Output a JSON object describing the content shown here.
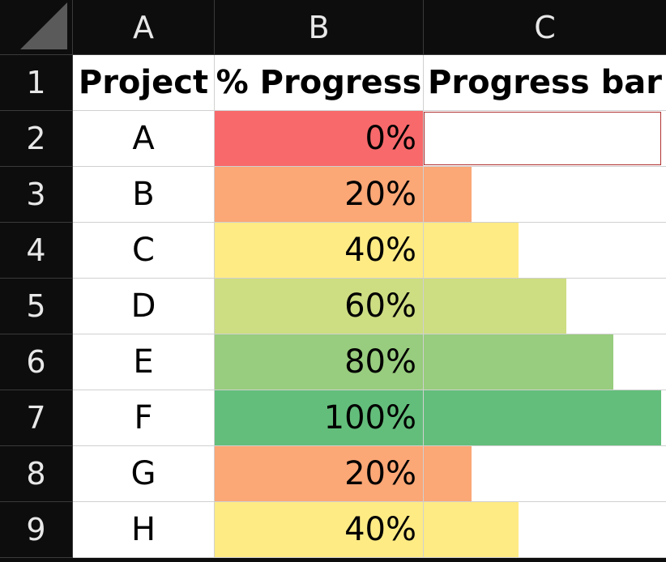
{
  "columns": [
    "A",
    "B",
    "C"
  ],
  "row_numbers": [
    "1",
    "2",
    "3",
    "4",
    "5",
    "6",
    "7",
    "8",
    "9"
  ],
  "headers": {
    "project": "Project",
    "progress": "% Progress",
    "bar": "Progress bar"
  },
  "rows": [
    {
      "project": "A",
      "progress": "0%",
      "fraction": 0.0,
      "color": "#f8696b"
    },
    {
      "project": "B",
      "progress": "20%",
      "fraction": 0.2,
      "color": "#fba776"
    },
    {
      "project": "C",
      "progress": "40%",
      "fraction": 0.4,
      "color": "#ffeb84"
    },
    {
      "project": "D",
      "progress": "60%",
      "fraction": 0.6,
      "color": "#cddd82"
    },
    {
      "project": "E",
      "progress": "80%",
      "fraction": 0.8,
      "color": "#98cc7e"
    },
    {
      "project": "F",
      "progress": "100%",
      "fraction": 1.0,
      "color": "#63be7b"
    },
    {
      "project": "G",
      "progress": "20%",
      "fraction": 0.2,
      "color": "#fba776"
    },
    {
      "project": "H",
      "progress": "40%",
      "fraction": 0.4,
      "color": "#ffeb84"
    }
  ],
  "colors": {
    "header_bg": "#0d0d0d",
    "header_text": "#e8e8e8",
    "gridline": "#d0d0d0"
  }
}
